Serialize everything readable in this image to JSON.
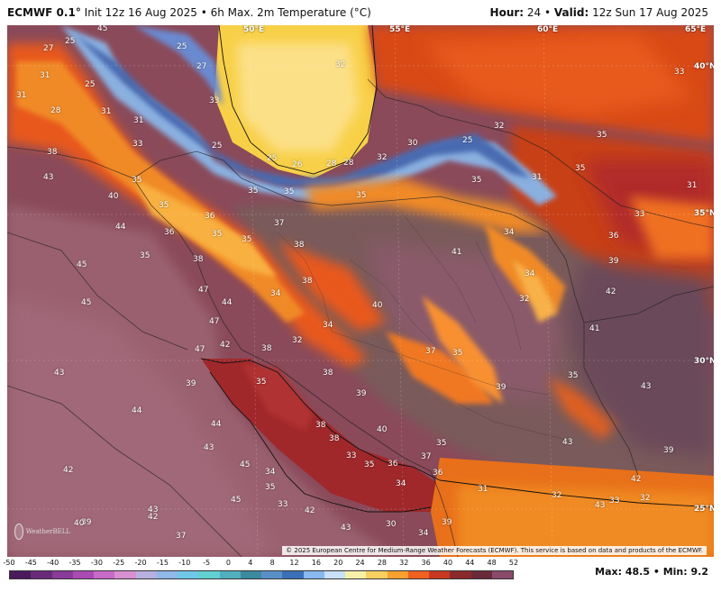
{
  "header": {
    "model": "ECMWF 0.1°",
    "init": "Init 12z 16 Aug 2025",
    "product": "6h Max. 2m Temperature (°C)",
    "hour_label": "Hour:",
    "hour": "24",
    "valid_label": "Valid:",
    "valid": "12z Sun 17 Aug 2025"
  },
  "coords": {
    "lon50": "50°E",
    "lon55": "55°E",
    "lon60": "60°E",
    "lon65": "65°E",
    "lat40": "40°N",
    "lat35": "35°N",
    "lat30": "30°N",
    "lat25": "25°N"
  },
  "temps": [
    "45",
    "27",
    "31",
    "25",
    "25",
    "27",
    "25",
    "31",
    "28",
    "31",
    "31",
    "33",
    "33",
    "25",
    "38",
    "43",
    "25",
    "26",
    "28",
    "28",
    "32",
    "30",
    "25",
    "32",
    "32",
    "33",
    "35",
    "35",
    "35",
    "35",
    "35",
    "31",
    "40",
    "35",
    "35",
    "35",
    "31",
    "36",
    "33",
    "44",
    "35",
    "36",
    "35",
    "37",
    "38",
    "34",
    "41",
    "38",
    "36",
    "45",
    "35",
    "38",
    "39",
    "42",
    "34",
    "45",
    "47",
    "34",
    "44",
    "32",
    "40",
    "47",
    "34",
    "32",
    "42",
    "43",
    "47",
    "37",
    "41",
    "35",
    "38",
    "38",
    "35",
    "39",
    "43",
    "44",
    "39",
    "39",
    "35",
    "38",
    "44",
    "38",
    "40",
    "43",
    "35",
    "36",
    "34",
    "37",
    "43",
    "33",
    "36",
    "42",
    "35",
    "39",
    "42",
    "34",
    "45",
    "35",
    "45",
    "43",
    "31",
    "32",
    "33",
    "32",
    "39",
    "42",
    "40",
    "39",
    "43",
    "30",
    "42",
    "37",
    "43",
    "34",
    "33"
  ],
  "copyright": "© 2025 European Centre for Medium-Range Weather Forecasts (ECMWF). This service is based on data and products of the ECMWF.",
  "logo": "WeatherBELL",
  "colorbar": {
    "ticks": [
      "-50",
      "-45",
      "-40",
      "-35",
      "-30",
      "-25",
      "-20",
      "-15",
      "-10",
      "-5",
      "0",
      "4",
      "8",
      "12",
      "16",
      "20",
      "24",
      "28",
      "32",
      "36",
      "40",
      "44",
      "48",
      "52"
    ],
    "colors": [
      "#4a1a5c",
      "#6a2a7a",
      "#8a3a98",
      "#aa4ab4",
      "#c86ac8",
      "#d890d0",
      "#b8b0e0",
      "#90b8e8",
      "#70c8e8",
      "#60d0d0",
      "#50b0c0",
      "#3a8aa0",
      "#5a90c8",
      "#3a70b8",
      "#88b8f0",
      "#c8e0f8",
      "#f8f0a8",
      "#f8d060",
      "#f8a030",
      "#f06020",
      "#c83820",
      "#8a2a2a",
      "#6a2a3a",
      "#8a4a6a"
    ]
  },
  "stats": {
    "max_label": "Max:",
    "max": "48.5",
    "min_label": "Min:",
    "min": "9.2"
  }
}
